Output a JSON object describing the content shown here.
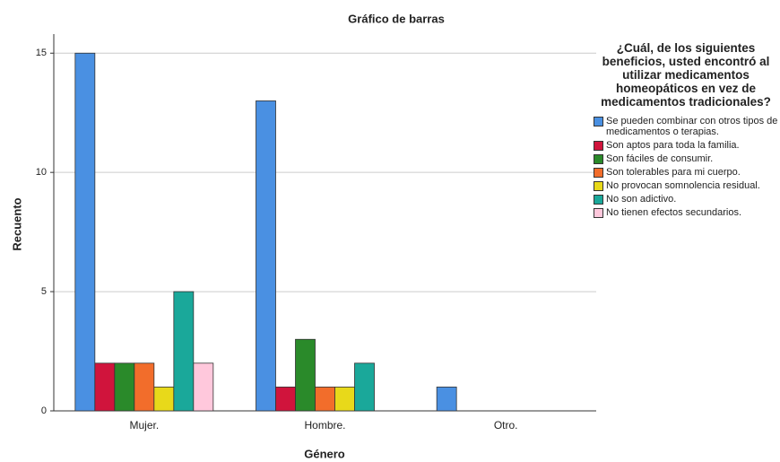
{
  "chart_data": {
    "type": "bar",
    "title": "Gráfico de barras",
    "xlabel": "Género",
    "ylabel": "Recuento",
    "categories": [
      "Mujer.",
      "Hombre.",
      "Otro."
    ],
    "legend_title": "¿Cuál, de los siguientes beneficios, usted encontró al utilizar medicamentos homeopáticos en vez de medicamentos tradicionales?",
    "series": [
      {
        "name": "Se pueden combinar con otros tipos de medicamentos o terapias.",
        "color": "#4a90e2",
        "values": [
          15,
          13,
          1
        ]
      },
      {
        "name": "Son aptos para toda la familia.",
        "color": "#d0143c",
        "values": [
          2,
          1,
          0
        ]
      },
      {
        "name": "Son fáciles de consumir.",
        "color": "#2a8a2a",
        "values": [
          2,
          3,
          0
        ]
      },
      {
        "name": "Son tolerables para mi cuerpo.",
        "color": "#f26d2b",
        "values": [
          2,
          1,
          0
        ]
      },
      {
        "name": "No provocan somnolencia residual.",
        "color": "#e8d91a",
        "values": [
          1,
          1,
          0
        ]
      },
      {
        "name": "No son adictivo.",
        "color": "#1aa89a",
        "values": [
          5,
          2,
          0
        ]
      },
      {
        "name": "No tienen efectos secundarios.",
        "color": "#ffc8dc",
        "values": [
          2,
          0,
          0
        ]
      }
    ],
    "ylim": [
      0,
      15.8
    ],
    "yticks": [
      0,
      5,
      10,
      15
    ],
    "grid": true,
    "legend": "right"
  }
}
